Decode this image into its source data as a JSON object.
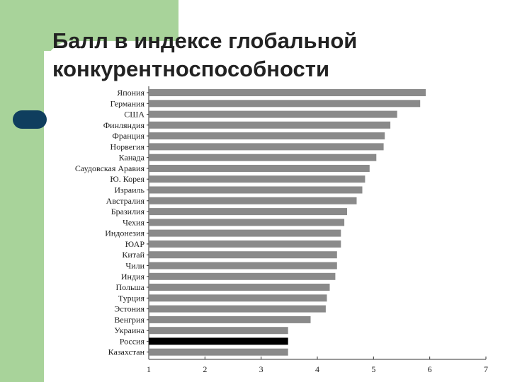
{
  "title_line1": "Балл в индексе глобальной",
  "title_line2": "конкурентноспособности",
  "colors": {
    "bar": "#8a8a8a",
    "highlight_bar": "#000000",
    "green": "#a8d39a",
    "navy": "#0f3e5e"
  },
  "chart_data": {
    "type": "bar",
    "orientation": "horizontal",
    "categories": [
      "Япония",
      "Германия",
      "США",
      "Финляндия",
      "Франция",
      "Норвегия",
      "Канада",
      "Саудовская Аравия",
      "Ю. Корея",
      "Израиль",
      "Австралия",
      "Бразилия",
      "Чехия",
      "Индонезия",
      "ЮАР",
      "Китай",
      "Чили",
      "Индия",
      "Польша",
      "Турция",
      "Эстония",
      "Венгрия",
      "Украина",
      "Россия",
      "Казахстан"
    ],
    "values": [
      5.93,
      5.83,
      5.42,
      5.3,
      5.2,
      5.18,
      5.05,
      4.93,
      4.85,
      4.8,
      4.7,
      4.53,
      4.48,
      4.42,
      4.42,
      4.35,
      4.35,
      4.32,
      4.22,
      4.17,
      4.15,
      3.88,
      3.48,
      3.48,
      3.48
    ],
    "highlight": "Россия",
    "xlim": [
      1,
      7
    ],
    "xticks": [
      "1",
      "2",
      "3",
      "4",
      "5",
      "6",
      "7"
    ]
  }
}
